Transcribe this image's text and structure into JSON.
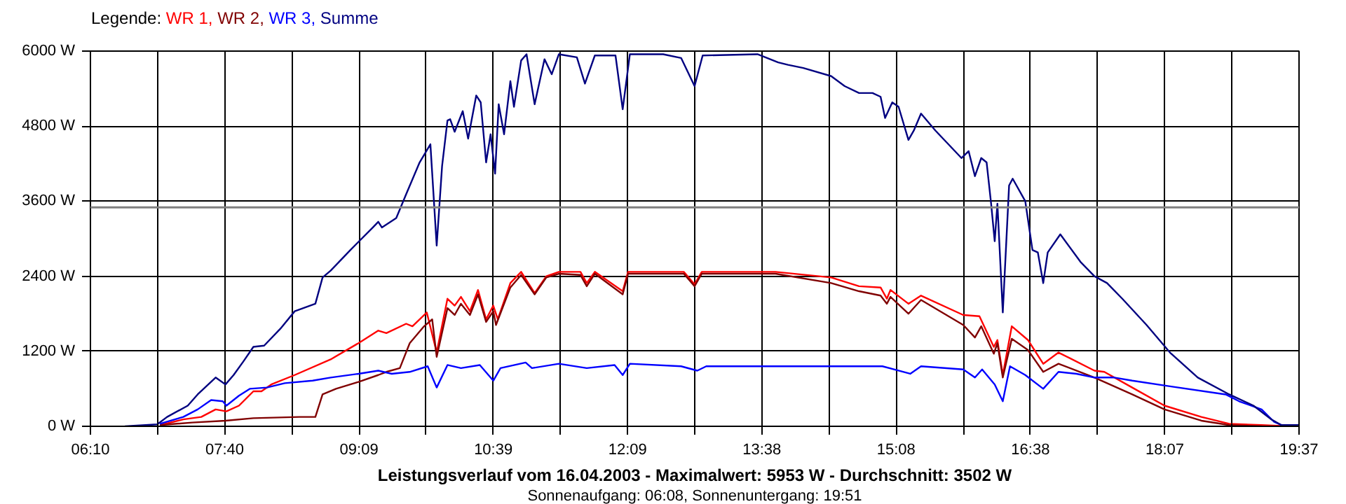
{
  "chart_data": {
    "type": "line",
    "title": "Leistungsverlauf vom 16.04.2003 - Maximalwert: 5953 W - Durchschnitt: 3502 W",
    "subtitle": "Sonnenaufgang: 06:08, Sonnenuntergang: 19:51",
    "legend_title": "Legende:",
    "legend": "top left",
    "grid": true,
    "line_style": "solid",
    "xlim": [
      6.1667,
      19.6167
    ],
    "ylim": [
      0,
      6000
    ],
    "xticks": [
      {
        "value": 6.1667,
        "label": "06:10"
      },
      {
        "value": 6.9139,
        "label": null
      },
      {
        "value": 7.6611,
        "label": "07:40"
      },
      {
        "value": 8.4083,
        "label": null
      },
      {
        "value": 9.1556,
        "label": "09:09"
      },
      {
        "value": 9.9028,
        "label": null
      },
      {
        "value": 10.65,
        "label": "10:39"
      },
      {
        "value": 11.3972,
        "label": null
      },
      {
        "value": 12.1444,
        "label": "12:09"
      },
      {
        "value": 12.8917,
        "label": null
      },
      {
        "value": 13.6389,
        "label": "13:38"
      },
      {
        "value": 14.3861,
        "label": null
      },
      {
        "value": 15.1333,
        "label": "15:08"
      },
      {
        "value": 15.8806,
        "label": null
      },
      {
        "value": 16.6278,
        "label": "16:38"
      },
      {
        "value": 17.375,
        "label": null
      },
      {
        "value": 18.1222,
        "label": "18:07"
      },
      {
        "value": 18.8694,
        "label": null
      },
      {
        "value": 19.6167,
        "label": "19:37"
      }
    ],
    "yticks": [
      {
        "value": 0,
        "label": "0 W"
      },
      {
        "value": 1200,
        "label": "1200 W"
      },
      {
        "value": 2400,
        "label": "2400 W"
      },
      {
        "value": 3600,
        "label": "3600 W"
      },
      {
        "value": 4800,
        "label": "4800 W"
      },
      {
        "value": 6000,
        "label": "6000 W"
      }
    ],
    "ref_lines": [
      {
        "axis": "y",
        "value": 3502,
        "color": "#808080"
      }
    ],
    "series": [
      {
        "name": "WR 1,",
        "color": "#ff0000",
        "x": [
          6.94,
          7.2,
          7.4,
          7.56,
          7.68,
          7.82,
          7.98,
          8.07,
          8.18,
          8.44,
          8.84,
          9.15,
          9.37,
          9.46,
          9.68,
          9.75,
          9.91,
          10.02,
          10.14,
          10.22,
          10.29,
          10.39,
          10.48,
          10.57,
          10.65,
          10.7,
          10.84,
          10.96,
          11.11,
          11.24,
          11.38,
          11.62,
          11.69,
          11.78,
          12.09,
          12.15,
          12.77,
          12.89,
          12.97,
          13.79,
          14.41,
          14.72,
          14.96,
          15.03,
          15.07,
          15.27,
          15.41,
          15.88,
          16.06,
          16.22,
          16.26,
          16.32,
          16.42,
          16.6,
          16.77,
          16.94,
          17.34,
          17.45,
          17.76,
          18.12,
          18.53,
          18.84,
          19.2,
          19.5
        ],
        "values": [
          20,
          110,
          150,
          270,
          240,
          330,
          560,
          560,
          670,
          820,
          1070,
          1330,
          1530,
          1490,
          1640,
          1600,
          1820,
          1180,
          2040,
          1930,
          2070,
          1840,
          2180,
          1710,
          1930,
          1710,
          2290,
          2470,
          2130,
          2400,
          2470,
          2470,
          2290,
          2470,
          2160,
          2470,
          2470,
          2270,
          2470,
          2470,
          2380,
          2240,
          2220,
          2040,
          2180,
          1960,
          2090,
          1780,
          1760,
          1270,
          1380,
          820,
          1600,
          1380,
          1000,
          1180,
          890,
          870,
          620,
          330,
          150,
          40,
          20,
          0
        ]
      },
      {
        "name": "WR 2,",
        "color": "#800000",
        "x": [
          6.94,
          7.3,
          7.67,
          7.98,
          8.49,
          8.67,
          8.75,
          8.9,
          9.15,
          9.37,
          9.46,
          9.61,
          9.72,
          9.88,
          9.97,
          10.02,
          10.14,
          10.22,
          10.29,
          10.39,
          10.48,
          10.57,
          10.65,
          10.68,
          10.84,
          10.96,
          11.11,
          11.24,
          11.38,
          11.62,
          11.69,
          11.78,
          12.09,
          12.15,
          12.77,
          12.89,
          12.97,
          13.79,
          14.41,
          14.72,
          14.96,
          15.03,
          15.07,
          15.27,
          15.41,
          15.88,
          16.01,
          16.08,
          16.22,
          16.26,
          16.32,
          16.42,
          16.6,
          16.77,
          16.94,
          17.34,
          17.76,
          18.12,
          18.53,
          18.84,
          19.2
        ],
        "values": [
          20,
          60,
          90,
          130,
          150,
          150,
          510,
          600,
          710,
          820,
          870,
          930,
          1330,
          1600,
          1710,
          1110,
          1890,
          1780,
          1960,
          1780,
          2110,
          1670,
          1840,
          1620,
          2220,
          2420,
          2110,
          2380,
          2440,
          2420,
          2240,
          2440,
          2110,
          2440,
          2440,
          2240,
          2440,
          2440,
          2290,
          2160,
          2090,
          1960,
          2070,
          1800,
          2020,
          1620,
          1420,
          1600,
          1160,
          1330,
          780,
          1400,
          1220,
          870,
          1000,
          780,
          510,
          270,
          90,
          20,
          0
        ]
      },
      {
        "name": "WR 3,",
        "color": "#0000ff",
        "x": [
          6.94,
          7.2,
          7.36,
          7.51,
          7.64,
          7.68,
          7.82,
          7.94,
          8.13,
          8.33,
          8.64,
          8.84,
          9.15,
          9.37,
          9.52,
          9.72,
          9.92,
          10.02,
          10.14,
          10.29,
          10.5,
          10.65,
          10.73,
          11.01,
          11.08,
          11.38,
          11.69,
          12.0,
          12.09,
          12.17,
          12.74,
          12.92,
          13.02,
          14.41,
          14.98,
          15.29,
          15.41,
          15.88,
          16.01,
          16.09,
          16.23,
          16.32,
          16.4,
          16.57,
          16.77,
          16.94,
          17.14,
          17.34,
          17.56,
          17.76,
          18.18,
          18.8,
          18.95,
          19.2,
          19.34,
          19.42,
          19.61
        ],
        "values": [
          40,
          150,
          270,
          420,
          400,
          330,
          490,
          600,
          620,
          690,
          730,
          780,
          840,
          890,
          840,
          870,
          960,
          620,
          980,
          930,
          980,
          730,
          930,
          1020,
          930,
          1000,
          930,
          980,
          820,
          1000,
          960,
          890,
          960,
          960,
          960,
          840,
          960,
          910,
          780,
          910,
          670,
          400,
          960,
          820,
          600,
          870,
          840,
          780,
          780,
          730,
          640,
          510,
          400,
          270,
          70,
          20,
          20
        ]
      },
      {
        "name": "Summe",
        "color": "#000080",
        "x": [
          6.55,
          6.91,
          7.02,
          7.25,
          7.36,
          7.56,
          7.67,
          7.76,
          7.87,
          7.98,
          8.1,
          8.28,
          8.44,
          8.67,
          8.75,
          8.84,
          9.06,
          9.31,
          9.37,
          9.41,
          9.57,
          9.68,
          9.83,
          9.95,
          10.02,
          10.08,
          10.14,
          10.17,
          10.22,
          10.31,
          10.37,
          10.46,
          10.51,
          10.57,
          10.62,
          10.67,
          10.71,
          10.77,
          10.84,
          10.88,
          10.96,
          11.02,
          11.11,
          11.22,
          11.3,
          11.38,
          11.58,
          11.67,
          11.78,
          12.01,
          12.09,
          12.17,
          12.54,
          12.74,
          12.89,
          12.98,
          13.59,
          13.82,
          13.93,
          14.1,
          14.41,
          14.56,
          14.72,
          14.87,
          14.96,
          15.01,
          15.09,
          15.16,
          15.27,
          15.33,
          15.41,
          15.57,
          15.86,
          15.94,
          16.01,
          16.08,
          16.14,
          16.19,
          16.23,
          16.26,
          16.32,
          16.39,
          16.43,
          16.57,
          16.65,
          16.71,
          16.77,
          16.82,
          16.96,
          17.19,
          17.34,
          17.48,
          17.65,
          17.92,
          18.18,
          18.49,
          18.84,
          19.11,
          19.31,
          19.42,
          19.61
        ],
        "values": [
          0,
          30,
          150,
          330,
          510,
          780,
          670,
          820,
          1040,
          1270,
          1290,
          1560,
          1840,
          1960,
          2380,
          2490,
          2820,
          3180,
          3270,
          3180,
          3330,
          3710,
          4220,
          4510,
          2890,
          4160,
          4890,
          4910,
          4710,
          5040,
          4600,
          5290,
          5180,
          4220,
          4670,
          4040,
          5150,
          4670,
          5520,
          5110,
          5850,
          5950,
          5150,
          5870,
          5630,
          5950,
          5900,
          5480,
          5930,
          5930,
          5070,
          5950,
          5950,
          5890,
          5440,
          5930,
          5950,
          5820,
          5780,
          5730,
          5600,
          5440,
          5330,
          5330,
          5270,
          4930,
          5180,
          5110,
          4580,
          4730,
          5000,
          4730,
          4290,
          4400,
          4000,
          4290,
          4220,
          3560,
          2960,
          3560,
          1820,
          3850,
          3960,
          3600,
          2820,
          2780,
          2290,
          2780,
          3070,
          2620,
          2400,
          2290,
          2040,
          1620,
          1180,
          780,
          510,
          330,
          110,
          20,
          20
        ]
      }
    ]
  }
}
